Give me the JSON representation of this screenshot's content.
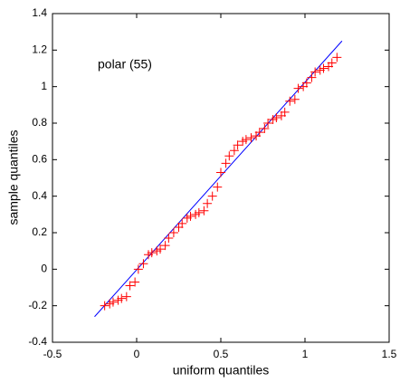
{
  "chart_data": {
    "type": "scatter",
    "annotation": "polar (55)",
    "xlabel": "uniform quantiles",
    "ylabel": "sample quantiles",
    "xlim": [
      -0.5,
      1.5
    ],
    "xticks": [
      -0.5,
      0,
      0.5,
      1,
      1.5
    ],
    "ylim": [
      -0.4,
      1.4
    ],
    "yticks": [
      -0.4,
      -0.2,
      0,
      0.2,
      0.4,
      0.6,
      0.8,
      1,
      1.2,
      1.4
    ],
    "series": [
      {
        "color": "#ff0000",
        "x": [
          -0.19,
          -0.16,
          -0.14,
          -0.11,
          -0.09,
          -0.06,
          -0.04,
          -0.01,
          0.01,
          0.04,
          0.07,
          0.09,
          0.12,
          0.14,
          0.17,
          0.19,
          0.22,
          0.25,
          0.27,
          0.3,
          0.32,
          0.35,
          0.37,
          0.4,
          0.42,
          0.45,
          0.48,
          0.5,
          0.53,
          0.55,
          0.58,
          0.6,
          0.63,
          0.65,
          0.68,
          0.71,
          0.73,
          0.76,
          0.78,
          0.81,
          0.83,
          0.86,
          0.88,
          0.91,
          0.94,
          0.96,
          0.99,
          1.01,
          1.04,
          1.06,
          1.09,
          1.11,
          1.14,
          1.16,
          1.19
        ],
        "values": [
          -0.2,
          -0.19,
          -0.18,
          -0.17,
          -0.16,
          -0.15,
          -0.09,
          -0.07,
          0.0,
          0.03,
          0.08,
          0.09,
          0.1,
          0.11,
          0.13,
          0.17,
          0.2,
          0.23,
          0.25,
          0.28,
          0.29,
          0.3,
          0.31,
          0.32,
          0.36,
          0.4,
          0.45,
          0.53,
          0.58,
          0.62,
          0.65,
          0.68,
          0.7,
          0.71,
          0.72,
          0.73,
          0.75,
          0.77,
          0.8,
          0.82,
          0.83,
          0.84,
          0.86,
          0.92,
          0.93,
          0.99,
          1.0,
          1.02,
          1.05,
          1.08,
          1.09,
          1.1,
          1.11,
          1.13,
          1.16
        ]
      }
    ],
    "reference_line": {
      "color": "#0000ff",
      "x": [
        -0.25,
        1.22
      ],
      "values": [
        -0.26,
        1.25
      ]
    }
  }
}
